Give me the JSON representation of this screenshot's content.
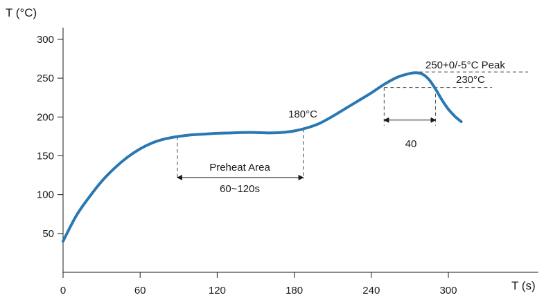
{
  "chart_data": {
    "type": "line",
    "title": "",
    "xlabel": "T (s)",
    "ylabel": "T (°C)",
    "xlim": [
      0,
      370
    ],
    "ylim": [
      0,
      330
    ],
    "x_ticks": [
      0,
      60,
      120,
      180,
      240,
      300
    ],
    "y_ticks": [
      50,
      100,
      150,
      200,
      250,
      300
    ],
    "grid": false,
    "series_color": "#2878b4",
    "series": [
      {
        "x": [
          0,
          10,
          20,
          30,
          40,
          50,
          60,
          70,
          80,
          90,
          100,
          110,
          120,
          130,
          140,
          150,
          160,
          170,
          180,
          190,
          200,
          210,
          220,
          230,
          240,
          250,
          260,
          270,
          275,
          280,
          285,
          290,
          295,
          300,
          305,
          310
        ],
        "y": [
          40,
          72,
          96,
          117,
          134,
          148,
          159,
          167,
          172,
          175,
          177,
          178,
          179,
          179.5,
          180,
          180,
          179.5,
          180,
          182,
          186,
          192,
          201,
          211,
          221,
          231,
          242,
          251,
          256,
          257,
          255,
          248,
          236,
          222,
          210,
          201,
          194
        ]
      }
    ],
    "annotations": {
      "preheat_label": "Preheat Area",
      "preheat_range": "60~120s",
      "preheat_start": 89,
      "preheat_end": 187,
      "preheat_bottom": 120,
      "label_180": "180°C",
      "peak_label": "250+0/-5°C Peak",
      "peak_value": 258,
      "peak_x": 273,
      "label_230": "230°C",
      "level_230": 238,
      "window_start": 250,
      "window_end": 290,
      "window_label": "40",
      "window_arrow_y": 196
    }
  }
}
